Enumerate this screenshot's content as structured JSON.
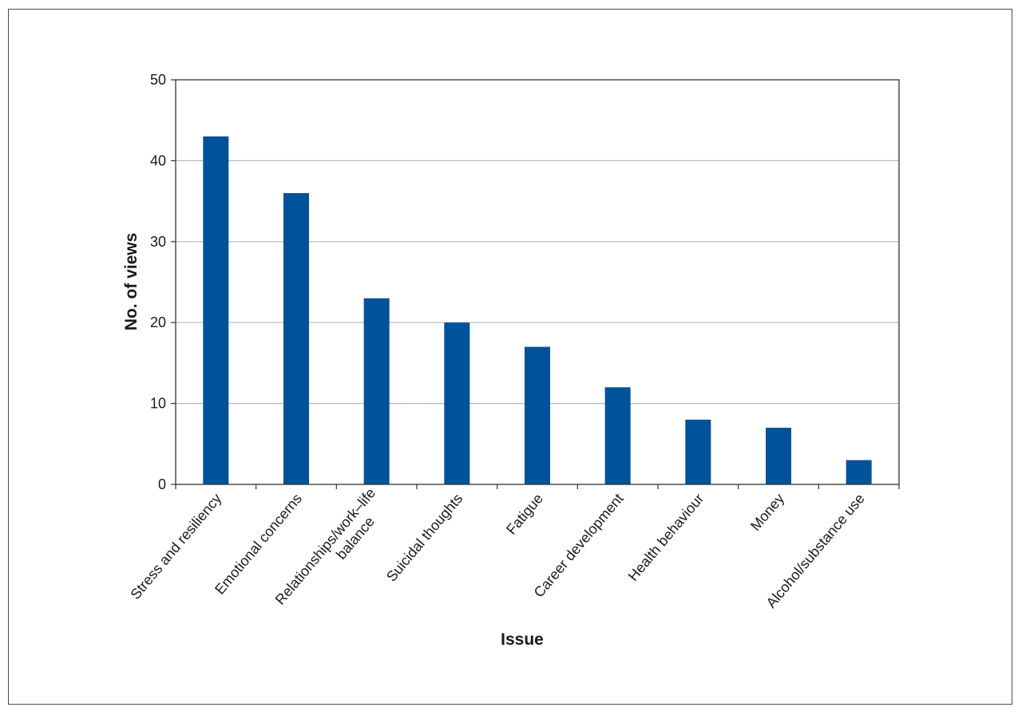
{
  "chart_data": {
    "type": "bar",
    "title": "",
    "xlabel": "Issue",
    "ylabel": "No. of views",
    "ylim": [
      0,
      50
    ],
    "yticks": [
      0,
      10,
      20,
      30,
      40,
      50
    ],
    "grid": true,
    "legend": "none",
    "bar_color": "#00529b",
    "categories": [
      [
        "Stress and resiliency"
      ],
      [
        "Emotional concerns"
      ],
      [
        "Relationships/work–life",
        "balance"
      ],
      [
        "Suicidal thoughts"
      ],
      [
        "Fatigue"
      ],
      [
        "Career development"
      ],
      [
        "Health behaviour"
      ],
      [
        "Money"
      ],
      [
        "Alcohol/substance use"
      ]
    ],
    "values": [
      43,
      36,
      23,
      20,
      17,
      12,
      8,
      7,
      3
    ]
  }
}
